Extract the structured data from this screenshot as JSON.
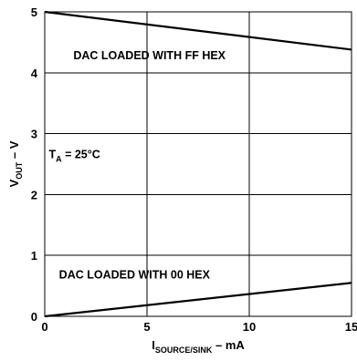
{
  "chart_data": {
    "type": "line",
    "title": "",
    "xlabel": {
      "main": "I",
      "sub": "SOURCE/SINK",
      "suffix": " – mA"
    },
    "ylabel": {
      "main": "V",
      "sub": "OUT",
      "suffix": " – V"
    },
    "xlim": [
      0,
      15
    ],
    "ylim": [
      0,
      5
    ],
    "grid": true,
    "x_ticks": [
      {
        "value": 0,
        "label": "0"
      },
      {
        "value": 5,
        "label": "5"
      },
      {
        "value": 10,
        "label": "10"
      },
      {
        "value": 15,
        "label": "15"
      }
    ],
    "y_ticks": [
      {
        "value": 0,
        "label": "0"
      },
      {
        "value": 1,
        "label": "1"
      },
      {
        "value": 2,
        "label": "2"
      },
      {
        "value": 3,
        "label": "3"
      },
      {
        "value": 4,
        "label": "4"
      },
      {
        "value": 5,
        "label": "5"
      }
    ],
    "series": [
      {
        "name": "DAC LOADED WITH FF HEX",
        "x": [
          0,
          15
        ],
        "y": [
          5.0,
          4.38
        ]
      },
      {
        "name": "DAC LOADED WITH 00 HEX",
        "x": [
          0,
          15
        ],
        "y": [
          0.0,
          0.55
        ]
      }
    ],
    "annotations": [
      {
        "id": "ff",
        "text": "DAC LOADED WITH FF HEX",
        "x": 1.4,
        "y": 4.22
      },
      {
        "id": "00",
        "text": "DAC LOADED WITH 00 HEX",
        "x": 0.7,
        "y": 0.62
      },
      {
        "id": "ta",
        "main": "T",
        "sub": "A",
        "suffix": " = 25°C",
        "x": 0.2,
        "y": 2.6
      }
    ]
  }
}
